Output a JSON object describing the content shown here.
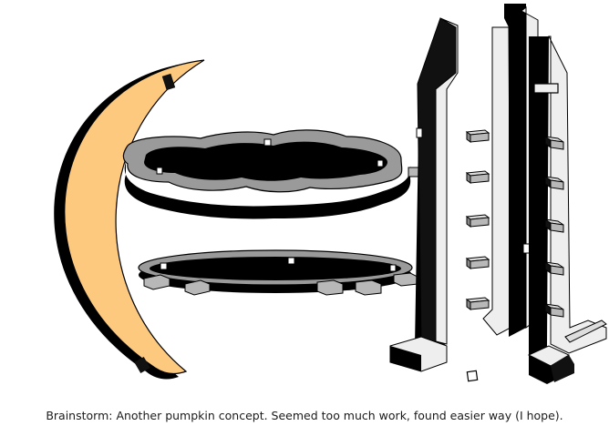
{
  "caption": "Brainstorm: Another pumpkin concept.  Seemed too much work, found easier way (I hope).",
  "colors": {
    "background": "#ffffff",
    "outline": "#000000",
    "crescent_fill": "#fcc97e",
    "panel_light": "#eeeeee",
    "panel_dark": "#111111",
    "ring_top": "#9a9a9a",
    "tab": "#b8b8b8"
  }
}
